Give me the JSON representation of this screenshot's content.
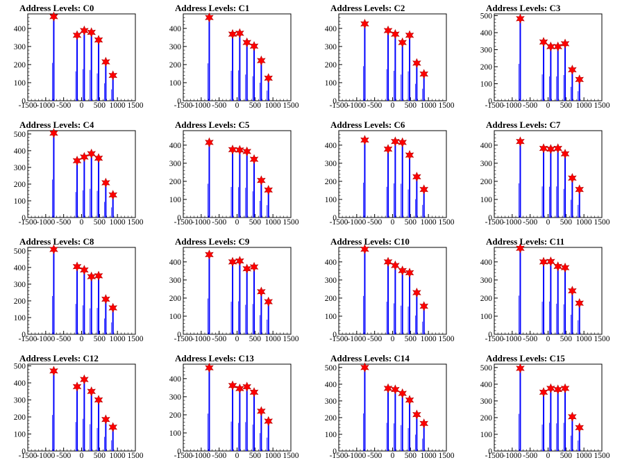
{
  "chart_data": [
    {
      "type": "bar",
      "title": "Address Levels: C0",
      "xlim": [
        -1500,
        1500
      ],
      "ylim": [
        0,
        480
      ],
      "yticks": [
        0,
        100,
        200,
        300,
        400
      ],
      "xticks": [
        -1500,
        -1000,
        -500,
        0,
        500,
        1000,
        1500
      ],
      "grid": false,
      "x": [
        -775,
        -125,
        75,
        275,
        475,
        675,
        875
      ],
      "values": [
        465,
        362,
        388,
        378,
        336,
        215,
        140
      ]
    },
    {
      "type": "bar",
      "title": "Address Levels: C1",
      "xlim": [
        -1500,
        1500
      ],
      "ylim": [
        0,
        480
      ],
      "yticks": [
        0,
        100,
        200,
        300,
        400
      ],
      "xticks": [
        -1500,
        -1000,
        -500,
        0,
        500,
        1000,
        1500
      ],
      "grid": false,
      "x": [
        -775,
        -125,
        75,
        275,
        475,
        675,
        875
      ],
      "values": [
        460,
        368,
        373,
        322,
        302,
        222,
        125
      ]
    },
    {
      "type": "bar",
      "title": "Address Levels: C2",
      "xlim": [
        -1500,
        1500
      ],
      "ylim": [
        0,
        480
      ],
      "yticks": [
        0,
        100,
        200,
        300,
        400
      ],
      "xticks": [
        -1500,
        -1000,
        -500,
        0,
        500,
        1000,
        1500
      ],
      "grid": false,
      "x": [
        -775,
        -125,
        75,
        275,
        475,
        675,
        875
      ],
      "values": [
        425,
        388,
        368,
        322,
        362,
        208,
        148
      ]
    },
    {
      "type": "bar",
      "title": "Address Levels: C3",
      "xlim": [
        -1500,
        1500
      ],
      "ylim": [
        0,
        510
      ],
      "yticks": [
        0,
        100,
        200,
        300,
        400,
        500
      ],
      "xticks": [
        -1500,
        -1000,
        -500,
        0,
        500,
        1000,
        1500
      ],
      "grid": false,
      "x": [
        -775,
        -125,
        75,
        275,
        475,
        675,
        875
      ],
      "values": [
        482,
        345,
        318,
        318,
        335,
        182,
        125
      ]
    },
    {
      "type": "bar",
      "title": "Address Levels: C4",
      "xlim": [
        -1500,
        1500
      ],
      "ylim": [
        0,
        520
      ],
      "yticks": [
        0,
        100,
        200,
        300,
        400,
        500
      ],
      "xticks": [
        -1500,
        -1000,
        -500,
        0,
        500,
        1000,
        1500
      ],
      "grid": false,
      "x": [
        -775,
        -125,
        75,
        275,
        475,
        675,
        875
      ],
      "values": [
        505,
        340,
        362,
        382,
        355,
        208,
        135
      ]
    },
    {
      "type": "bar",
      "title": "Address Levels: C5",
      "xlim": [
        -1500,
        1500
      ],
      "ylim": [
        0,
        480
      ],
      "yticks": [
        0,
        100,
        200,
        300,
        400
      ],
      "xticks": [
        -1500,
        -1000,
        -500,
        0,
        500,
        1000,
        1500
      ],
      "grid": false,
      "x": [
        -775,
        -125,
        75,
        275,
        475,
        675,
        875
      ],
      "values": [
        415,
        375,
        373,
        365,
        322,
        205,
        152
      ]
    },
    {
      "type": "bar",
      "title": "Address Levels: C6",
      "xlim": [
        -1500,
        1500
      ],
      "ylim": [
        0,
        480
      ],
      "yticks": [
        0,
        100,
        200,
        300,
        400
      ],
      "xticks": [
        -1500,
        -1000,
        -500,
        0,
        500,
        1000,
        1500
      ],
      "grid": false,
      "x": [
        -775,
        -125,
        75,
        275,
        475,
        675,
        875
      ],
      "values": [
        428,
        378,
        420,
        415,
        345,
        225,
        155
      ]
    },
    {
      "type": "bar",
      "title": "Address Levels: C7",
      "xlim": [
        -1500,
        1500
      ],
      "ylim": [
        0,
        480
      ],
      "yticks": [
        0,
        100,
        200,
        300,
        400
      ],
      "xticks": [
        -1500,
        -1000,
        -500,
        0,
        500,
        1000,
        1500
      ],
      "grid": false,
      "x": [
        -775,
        -125,
        75,
        275,
        475,
        675,
        875
      ],
      "values": [
        420,
        382,
        378,
        382,
        352,
        218,
        155
      ]
    },
    {
      "type": "bar",
      "title": "Address Levels: C8",
      "xlim": [
        -1500,
        1500
      ],
      "ylim": [
        0,
        520
      ],
      "yticks": [
        0,
        100,
        200,
        300,
        400,
        500
      ],
      "xticks": [
        -1500,
        -1000,
        -500,
        0,
        500,
        1000,
        1500
      ],
      "grid": false,
      "x": [
        -775,
        -125,
        75,
        275,
        475,
        675,
        875
      ],
      "values": [
        508,
        405,
        385,
        345,
        350,
        210,
        158
      ]
    },
    {
      "type": "bar",
      "title": "Address Levels: C9",
      "xlim": [
        -1500,
        1500
      ],
      "ylim": [
        0,
        480
      ],
      "yticks": [
        0,
        100,
        200,
        300,
        400
      ],
      "xticks": [
        -1500,
        -1000,
        -500,
        0,
        500,
        1000,
        1500
      ],
      "grid": false,
      "x": [
        -775,
        -125,
        75,
        275,
        475,
        675,
        875
      ],
      "values": [
        440,
        400,
        405,
        362,
        372,
        235,
        180
      ]
    },
    {
      "type": "bar",
      "title": "Address Levels: C10",
      "xlim": [
        -1500,
        1500
      ],
      "ylim": [
        0,
        480
      ],
      "yticks": [
        0,
        100,
        200,
        300,
        400
      ],
      "xticks": [
        -1500,
        -1000,
        -500,
        0,
        500,
        1000,
        1500
      ],
      "grid": false,
      "x": [
        -775,
        -125,
        75,
        275,
        475,
        675,
        875
      ],
      "values": [
        470,
        400,
        380,
        352,
        340,
        230,
        155
      ]
    },
    {
      "type": "bar",
      "title": "Address Levels: C11",
      "xlim": [
        -1500,
        1500
      ],
      "ylim": [
        0,
        480
      ],
      "yticks": [
        0,
        100,
        200,
        300,
        400
      ],
      "xticks": [
        -1500,
        -1000,
        -500,
        0,
        500,
        1000,
        1500
      ],
      "grid": false,
      "x": [
        -775,
        -125,
        75,
        275,
        475,
        675,
        875
      ],
      "values": [
        475,
        400,
        402,
        375,
        368,
        240,
        172
      ]
    },
    {
      "type": "bar",
      "title": "Address Levels: C12",
      "xlim": [
        -1500,
        1500
      ],
      "ylim": [
        0,
        510
      ],
      "yticks": [
        0,
        100,
        200,
        300,
        400,
        500
      ],
      "xticks": [
        -1500,
        -1000,
        -500,
        0,
        500,
        1000,
        1500
      ],
      "grid": false,
      "x": [
        -775,
        -125,
        75,
        275,
        475,
        675,
        875
      ],
      "values": [
        470,
        378,
        420,
        350,
        300,
        185,
        140
      ]
    },
    {
      "type": "bar",
      "title": "Address Levels: C13",
      "xlim": [
        -1500,
        1500
      ],
      "ylim": [
        0,
        480
      ],
      "yticks": [
        0,
        100,
        200,
        300,
        400
      ],
      "xticks": [
        -1500,
        -1000,
        -500,
        0,
        500,
        1000,
        1500
      ],
      "grid": false,
      "x": [
        -775,
        -125,
        75,
        275,
        475,
        675,
        875
      ],
      "values": [
        460,
        362,
        345,
        355,
        325,
        220,
        165
      ]
    },
    {
      "type": "bar",
      "title": "Address Levels: C14",
      "xlim": [
        -1500,
        1500
      ],
      "ylim": [
        0,
        520
      ],
      "yticks": [
        0,
        100,
        200,
        300,
        400,
        500
      ],
      "xticks": [
        -1500,
        -1000,
        -500,
        0,
        500,
        1000,
        1500
      ],
      "grid": false,
      "x": [
        -775,
        -125,
        75,
        275,
        475,
        675,
        875
      ],
      "values": [
        500,
        375,
        368,
        345,
        305,
        218,
        165
      ]
    },
    {
      "type": "bar",
      "title": "Address Levels: C15",
      "xlim": [
        -1500,
        1500
      ],
      "ylim": [
        0,
        520
      ],
      "yticks": [
        0,
        100,
        200,
        300,
        400,
        500
      ],
      "xticks": [
        -1500,
        -1000,
        -500,
        0,
        500,
        1000,
        1500
      ],
      "grid": false,
      "x": [
        -775,
        -125,
        75,
        275,
        475,
        675,
        875
      ],
      "values": [
        495,
        352,
        375,
        368,
        375,
        205,
        140
      ]
    }
  ],
  "colors": {
    "bars": "#0000ff",
    "markers": "#ff0000",
    "axis": "#000000"
  }
}
